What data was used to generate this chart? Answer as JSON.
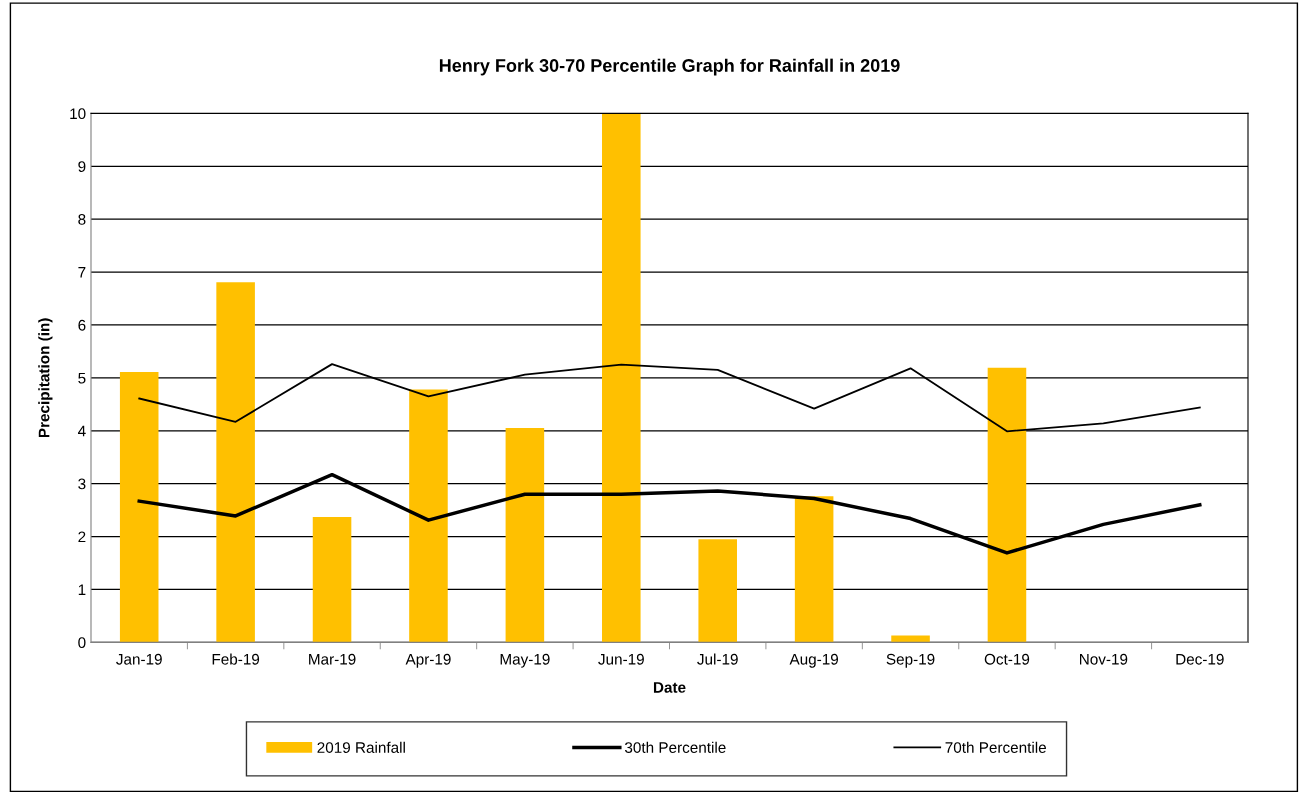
{
  "chart_data": {
    "type": "bar",
    "title": "Henry Fork 30-70 Percentile Graph for Rainfall in 2019",
    "xlabel": "Date",
    "ylabel": "Precipitation (in)",
    "categories": [
      "Jan-19",
      "Feb-19",
      "Mar-19",
      "Apr-19",
      "May-19",
      "Jun-19",
      "Jul-19",
      "Aug-19",
      "Sep-19",
      "Oct-19",
      "Nov-19",
      "Dec-19"
    ],
    "series": [
      {
        "name": "2019 Rainfall",
        "color": "#ffc000",
        "values": [
          5.11,
          6.81,
          2.37,
          4.78,
          4.05,
          10,
          1.95,
          2.76,
          0.13,
          5.19,
          null,
          null
        ]
      },
      {
        "name": "30th Percentile",
        "type": "line",
        "color": "#000000",
        "values": [
          2.67,
          2.39,
          3.17,
          2.31,
          2.8,
          2.8,
          2.86,
          2.72,
          2.34,
          1.69,
          2.23,
          2.6
        ]
      },
      {
        "name": "70th Percentile",
        "type": "line",
        "color": "#000000",
        "values": [
          4.61,
          4.17,
          5.26,
          4.65,
          5.06,
          5.25,
          5.15,
          4.42,
          5.18,
          3.99,
          4.14,
          4.44
        ]
      }
    ],
    "ylim": [
      0,
      10
    ],
    "yticks": [
      0,
      1,
      2,
      3,
      4,
      5,
      6,
      7,
      8,
      9,
      10
    ],
    "grid": "y",
    "legend": "bottom",
    "marker": "none",
    "line_style": "solid"
  }
}
